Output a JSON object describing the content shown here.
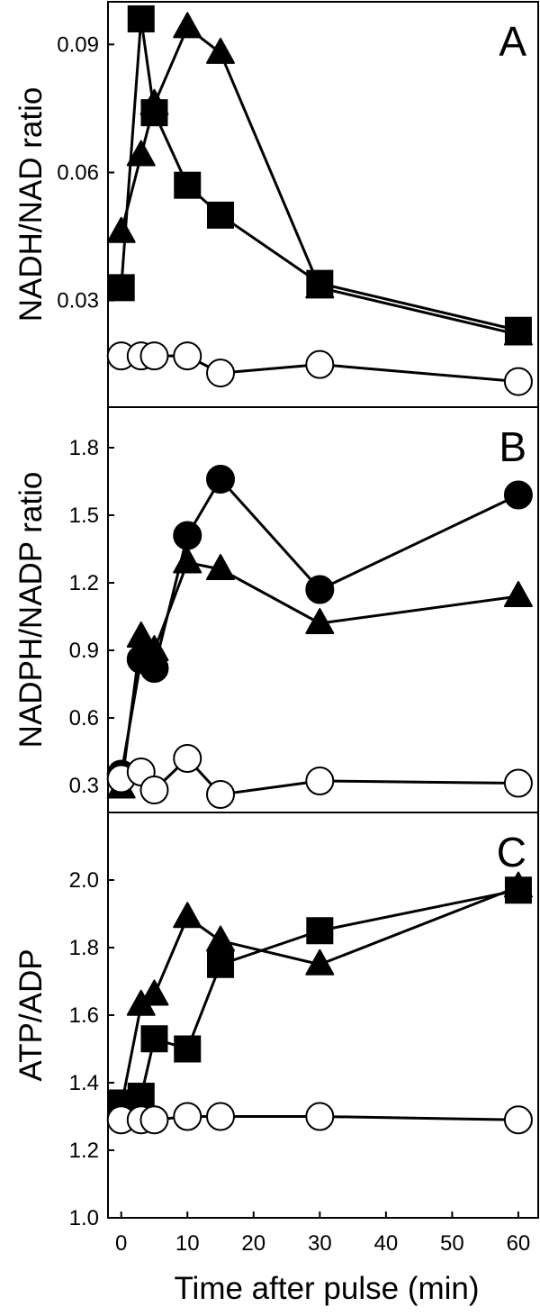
{
  "x_axis": {
    "label": "Time after pulse (min)",
    "range": [
      -2,
      63
    ],
    "ticks": [
      0,
      10,
      20,
      30,
      40,
      50,
      60
    ]
  },
  "chart_data": [
    {
      "type": "line",
      "panel": "A",
      "ylabel": "NADH/NAD ratio",
      "ylim": [
        0.005,
        0.1
      ],
      "yticks": [
        0.03,
        0.06,
        0.09
      ],
      "ytick_labels": [
        "0.03",
        "0.06",
        "0.09"
      ],
      "x": [
        0,
        3,
        5,
        10,
        15,
        30,
        60
      ],
      "series": [
        {
          "marker": "square",
          "fill": "#000000",
          "values": [
            0.033,
            0.096,
            0.074,
            0.057,
            0.05,
            0.034,
            0.023
          ]
        },
        {
          "marker": "triangle",
          "fill": "#000000",
          "values": [
            0.046,
            0.064,
            0.076,
            0.094,
            0.088,
            0.033,
            0.022
          ]
        },
        {
          "marker": "circle",
          "fill": "#ffffff",
          "values": [
            0.017,
            0.017,
            0.017,
            0.017,
            0.013,
            0.015,
            0.011
          ]
        }
      ]
    },
    {
      "type": "line",
      "panel": "B",
      "ylabel": "NADPH/NADP ratio",
      "ylim": [
        0.18,
        1.98
      ],
      "yticks": [
        0.3,
        0.6,
        0.9,
        1.2,
        1.5,
        1.8
      ],
      "ytick_labels": [
        "0.3",
        "0.6",
        "0.9",
        "1.2",
        "1.5",
        "1.8"
      ],
      "x": [
        0,
        3,
        5,
        10,
        15,
        30,
        60
      ],
      "series": [
        {
          "marker": "circle",
          "fill": "#000000",
          "values": [
            0.35,
            0.86,
            0.82,
            1.41,
            1.66,
            1.17,
            1.59
          ]
        },
        {
          "marker": "triangle",
          "fill": "#000000",
          "values": [
            0.29,
            0.96,
            0.9,
            1.29,
            1.26,
            1.02,
            1.14
          ]
        },
        {
          "marker": "circle",
          "fill": "#ffffff",
          "values": [
            0.33,
            0.36,
            0.28,
            0.42,
            0.26,
            0.32,
            0.31
          ]
        }
      ]
    },
    {
      "type": "line",
      "panel": "C",
      "ylabel": "ATP/ADP",
      "ylim": [
        1.0,
        2.2
      ],
      "yticks": [
        1.0,
        1.2,
        1.4,
        1.6,
        1.8,
        2.0
      ],
      "ytick_labels": [
        "1.0",
        "1.2",
        "1.4",
        "1.6",
        "1.8",
        "2.0"
      ],
      "x": [
        0,
        3,
        5,
        10,
        15,
        30,
        60
      ],
      "series": [
        {
          "marker": "square",
          "fill": "#000000",
          "values": [
            1.34,
            1.36,
            1.53,
            1.5,
            1.75,
            1.85,
            1.97
          ]
        },
        {
          "marker": "triangle",
          "fill": "#000000",
          "values": [
            1.33,
            1.63,
            1.66,
            1.89,
            1.82,
            1.75,
            1.98
          ]
        },
        {
          "marker": "circle",
          "fill": "#ffffff",
          "values": [
            1.29,
            1.29,
            1.29,
            1.3,
            1.3,
            1.3,
            1.29
          ]
        }
      ]
    }
  ]
}
